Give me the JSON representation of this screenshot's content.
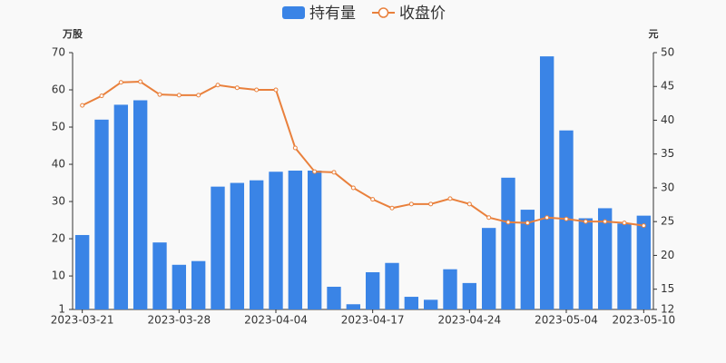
{
  "chart_data": {
    "type": "bar",
    "y_unit": "万股",
    "y2_unit": "元",
    "categories": [
      "2023-03-21",
      null,
      null,
      null,
      null,
      "2023-03-28",
      null,
      null,
      null,
      null,
      "2023-04-04",
      null,
      null,
      null,
      null,
      "2023-04-17",
      null,
      null,
      null,
      null,
      "2023-04-24",
      null,
      null,
      null,
      null,
      "2023-05-04",
      null,
      null,
      null,
      "2023-05-10"
    ],
    "series": [
      {
        "name": "持有量",
        "type": "bar",
        "color": "#3a84e6",
        "values": [
          21,
          52,
          56,
          57.2,
          19,
          13,
          14,
          34,
          35,
          35.7,
          38,
          38.3,
          38.3,
          7.1,
          2.4,
          11,
          13.5,
          4.4,
          3.6,
          11.8,
          8.1,
          22.9,
          36.4,
          27.8,
          69,
          49.1,
          25.5,
          28.2,
          24.1,
          26.2
        ]
      },
      {
        "name": "收盘价",
        "type": "line",
        "axis": "y2",
        "color": "#e9803c",
        "values": [
          42.2,
          43.6,
          45.6,
          45.7,
          43.8,
          43.7,
          43.7,
          45.2,
          44.8,
          44.5,
          44.5,
          35.9,
          32.4,
          32.3,
          30.0,
          28.3,
          27.0,
          27.6,
          27.6,
          28.4,
          27.6,
          25.6,
          24.9,
          24.8,
          25.6,
          25.4,
          25.0,
          25.0,
          24.8,
          24.4
        ]
      }
    ],
    "ylim": [
      1,
      70
    ],
    "yticks": [
      1,
      10,
      20,
      30,
      40,
      50,
      60,
      70
    ],
    "y2lim": [
      12,
      50
    ],
    "y2ticks": [
      12,
      15,
      20,
      25,
      30,
      35,
      40,
      45,
      50
    ],
    "grid": false,
    "legend": "top"
  }
}
